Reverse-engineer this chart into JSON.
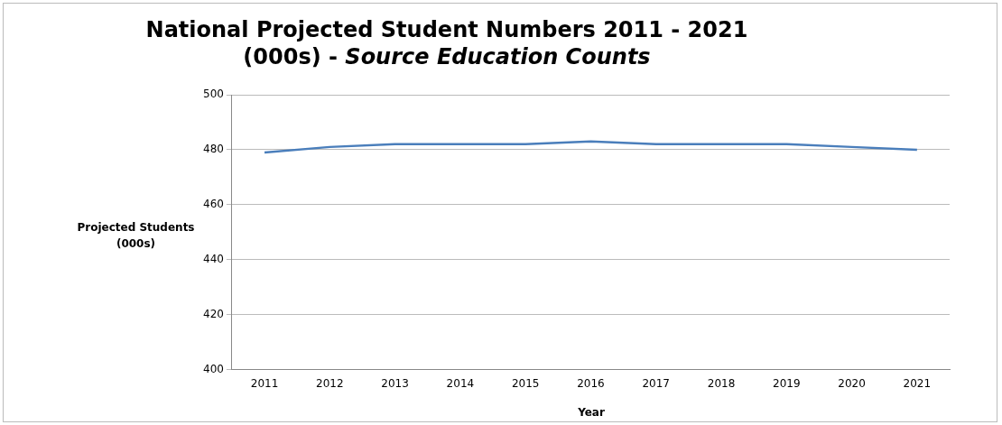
{
  "chart_data": {
    "type": "line",
    "title": "National Projected Student Numbers 2011 - 2021 (000s) -",
    "subtitle": "Source Education Counts",
    "xlabel": "Year",
    "ylabel": "Projected Students (000s)",
    "categories": [
      "2011",
      "2012",
      "2013",
      "2014",
      "2015",
      "2016",
      "2017",
      "2018",
      "2019",
      "2020",
      "2021"
    ],
    "series": [
      {
        "color": "#4a7ebb",
        "values": [
          479,
          481,
          482,
          482,
          482,
          483,
          482,
          482,
          482,
          481,
          480
        ]
      }
    ],
    "ylim": [
      400,
      500
    ],
    "yticks": [
      400,
      420,
      440,
      460,
      480,
      500
    ],
    "grid": "y",
    "legend": false,
    "marker": "none",
    "line_style": "solid"
  }
}
